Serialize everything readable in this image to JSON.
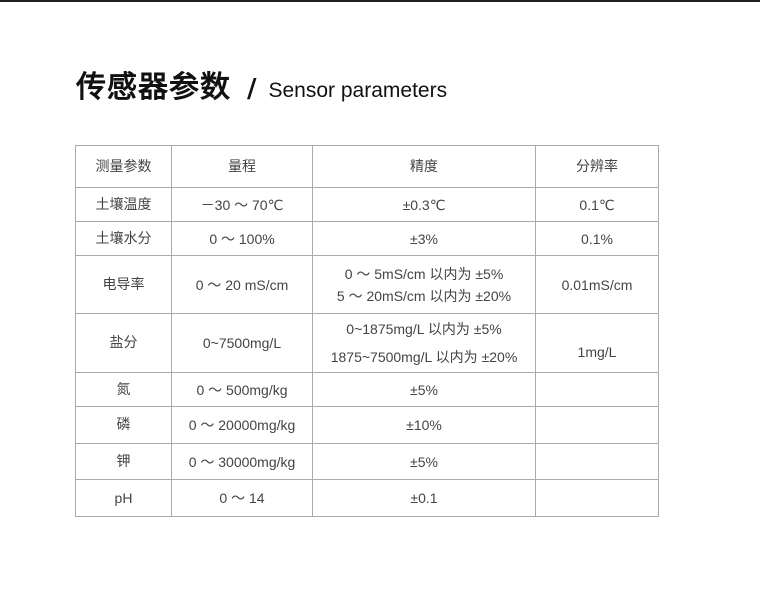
{
  "title": {
    "zh": "传感器参数",
    "separator": "/",
    "en": "Sensor parameters"
  },
  "table": {
    "headers": [
      "测量参数",
      "量程",
      "精度",
      "分辨率"
    ],
    "rows": [
      {
        "param": "土壤温度",
        "range": "－30 ～ 70℃",
        "accuracy": [
          "±0.3℃"
        ],
        "resolution": "0.1℃"
      },
      {
        "param": "土壤水分",
        "range": "0 ～ 100%",
        "accuracy": [
          "±3%"
        ],
        "resolution": "0.1%"
      },
      {
        "param": "电导率",
        "range": "0 ～ 20 mS/cm",
        "accuracy": [
          "0 ～ 5mS/cm 以内为 ±5%",
          "5 ～ 20mS/cm 以内为 ±20%"
        ],
        "resolution": "0.01mS/cm"
      },
      {
        "param": "盐分",
        "range": "0~7500mg/L",
        "accuracy": [
          "0~1875mg/L 以内为 ±5%",
          "1875~7500mg/L 以内为 ±20%"
        ],
        "resolution": "1mg/L"
      },
      {
        "param": "氮",
        "range": "0 ～ 500mg/kg",
        "accuracy": [
          "±5%"
        ],
        "resolution": ""
      },
      {
        "param": "磷",
        "range": "0 ～ 20000mg/kg",
        "accuracy": [
          "±10%"
        ],
        "resolution": ""
      },
      {
        "param": "钾",
        "range": "0 ～ 30000mg/kg",
        "accuracy": [
          "±5%"
        ],
        "resolution": ""
      },
      {
        "param": "pH",
        "range": "0 ～ 14",
        "accuracy": [
          "±0.1"
        ],
        "resolution": ""
      }
    ]
  }
}
